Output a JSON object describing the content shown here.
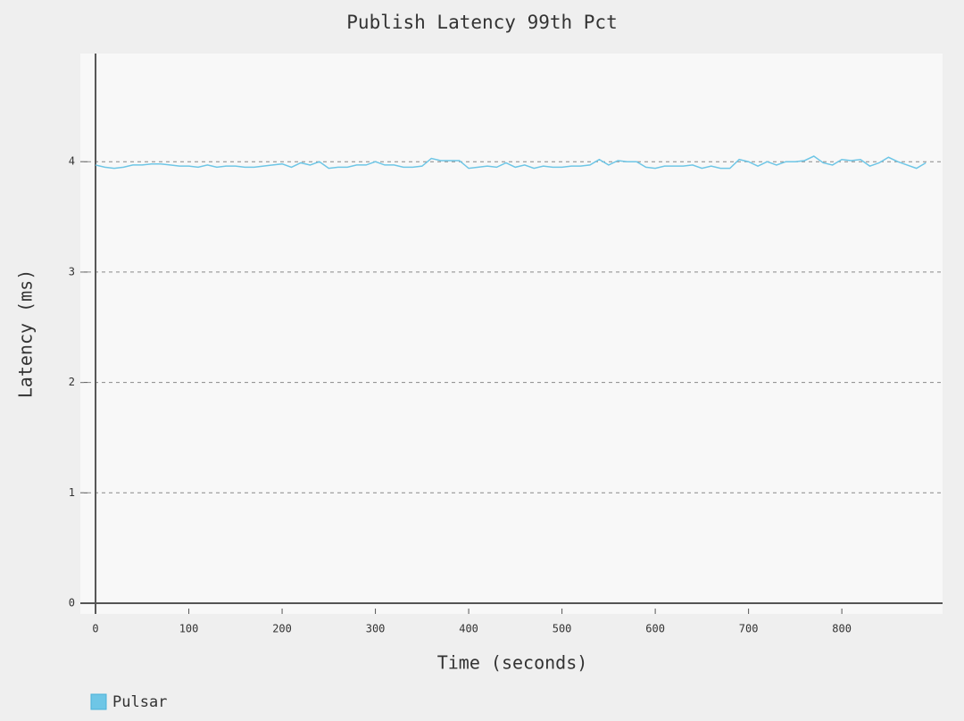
{
  "chart_data": {
    "type": "line",
    "title": "Publish Latency 99th Pct",
    "x_label": "Time (seconds)",
    "y_label": "Latency (ms)",
    "x": [
      0,
      10,
      20,
      30,
      40,
      50,
      60,
      70,
      80,
      90,
      100,
      110,
      120,
      130,
      140,
      150,
      160,
      170,
      180,
      190,
      200,
      210,
      220,
      230,
      240,
      250,
      260,
      270,
      280,
      290,
      300,
      310,
      320,
      330,
      340,
      350,
      360,
      370,
      380,
      390,
      400,
      410,
      420,
      430,
      440,
      450,
      460,
      470,
      480,
      490,
      500,
      510,
      520,
      530,
      540,
      550,
      560,
      570,
      580,
      590,
      600,
      610,
      620,
      630,
      640,
      650,
      660,
      670,
      680,
      690,
      700,
      710,
      720,
      730,
      740,
      750,
      760,
      770,
      780,
      790,
      800,
      810,
      820,
      830,
      840,
      850,
      860,
      870,
      880,
      890
    ],
    "series": [
      {
        "name": "Pulsar",
        "color": "#6ec6e6",
        "values": [
          3.97,
          3.95,
          3.94,
          3.95,
          3.97,
          3.97,
          3.98,
          3.98,
          3.97,
          3.96,
          3.96,
          3.95,
          3.97,
          3.95,
          3.96,
          3.96,
          3.95,
          3.95,
          3.96,
          3.97,
          3.98,
          3.95,
          3.99,
          3.97,
          4.0,
          3.94,
          3.95,
          3.95,
          3.97,
          3.97,
          4.0,
          3.97,
          3.97,
          3.95,
          3.95,
          3.96,
          4.03,
          4.01,
          4.01,
          4.01,
          3.94,
          3.95,
          3.96,
          3.95,
          3.99,
          3.95,
          3.97,
          3.94,
          3.96,
          3.95,
          3.95,
          3.96,
          3.96,
          3.97,
          4.02,
          3.97,
          4.01,
          4.0,
          4.0,
          3.95,
          3.94,
          3.96,
          3.96,
          3.96,
          3.97,
          3.94,
          3.96,
          3.94,
          3.94,
          4.02,
          4.0,
          3.96,
          4.0,
          3.97,
          4.0,
          4.0,
          4.01,
          4.05,
          3.99,
          3.97,
          4.02,
          4.01,
          4.02,
          3.96,
          3.99,
          4.04,
          4.0,
          3.97,
          3.94,
          3.99
        ]
      }
    ],
    "xlim": [
      -16.3,
      908
    ],
    "xticks": [
      0,
      100,
      200,
      300,
      400,
      500,
      600,
      700,
      800
    ],
    "ylim": [
      -0.097,
      4.98
    ],
    "yticks": [
      0,
      1,
      2,
      3,
      4
    ],
    "grid": true
  }
}
